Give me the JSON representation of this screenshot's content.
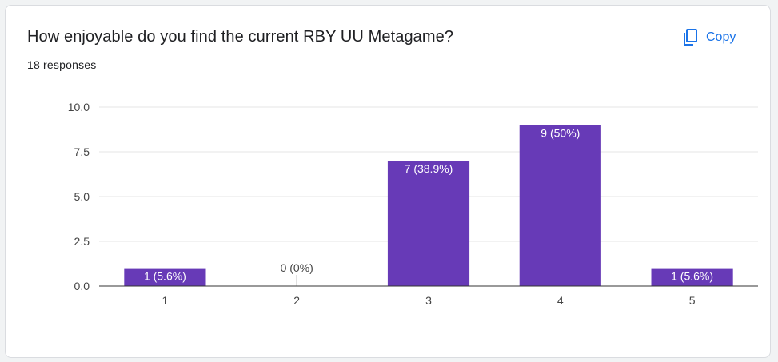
{
  "question": {
    "title": "How enjoyable do you find the current RBY UU Metagame?",
    "responses": "18 responses"
  },
  "toolbar": {
    "copy_label": "Copy",
    "copy_icon": "copy-icon"
  },
  "colors": {
    "bar": "#673ab7",
    "accent": "#1a73e8"
  },
  "chart_data": {
    "type": "bar",
    "categories": [
      "1",
      "2",
      "3",
      "4",
      "5"
    ],
    "values": [
      1,
      0,
      7,
      9,
      1
    ],
    "data_labels": [
      "1 (5.6%)",
      "0 (0%)",
      "7 (38.9%)",
      "9 (50%)",
      "1 (5.6%)"
    ],
    "yticks": [
      "0.0",
      "2.5",
      "5.0",
      "7.5",
      "10.0"
    ],
    "ylim": [
      0,
      10
    ],
    "grid": true,
    "legend": "none"
  }
}
